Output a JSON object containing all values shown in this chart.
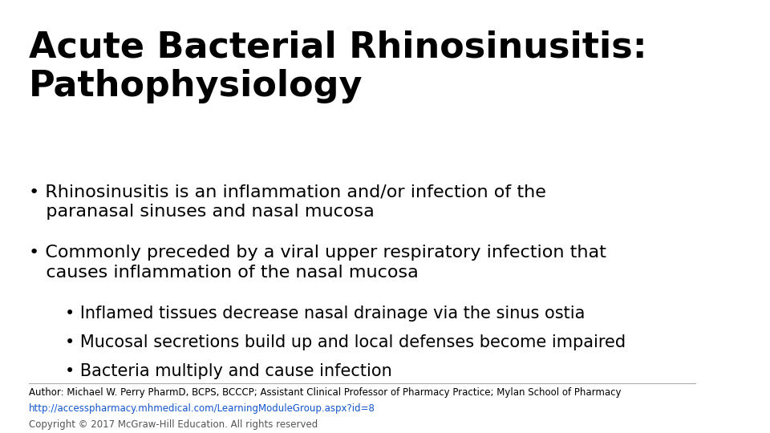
{
  "title_line1": "Acute Bacterial Rhinosinusitis:",
  "title_line2": "Pathophysiology",
  "background_color": "#ffffff",
  "title_color": "#000000",
  "title_fontsize": 32,
  "text_color": "#000000",
  "sub_bullet1": "Inflamed tissues decrease nasal drainage via the sinus ostia",
  "sub_bullet2": "Mucosal secretions build up and local defenses become impaired",
  "sub_bullet3": "Bacteria multiply and cause infection",
  "footer_author": "Author: Michael W. Perry PharmD, BCPS, BCCCP; Assistant Clinical Professor of Pharmacy Practice; Mylan School of Pharmacy",
  "footer_url": "http://accesspharmacy.mhmedical.com/LearningModuleGroup.aspx?id=8",
  "footer_copyright": "Copyright © 2017 McGraw-Hill Education. All rights reserved",
  "footer_color": "#000000",
  "footer_url_color": "#1155cc",
  "footer_copyright_color": "#555555",
  "footer_fontsize": 8.5,
  "main_fontsize": 16,
  "sub_fontsize": 15
}
